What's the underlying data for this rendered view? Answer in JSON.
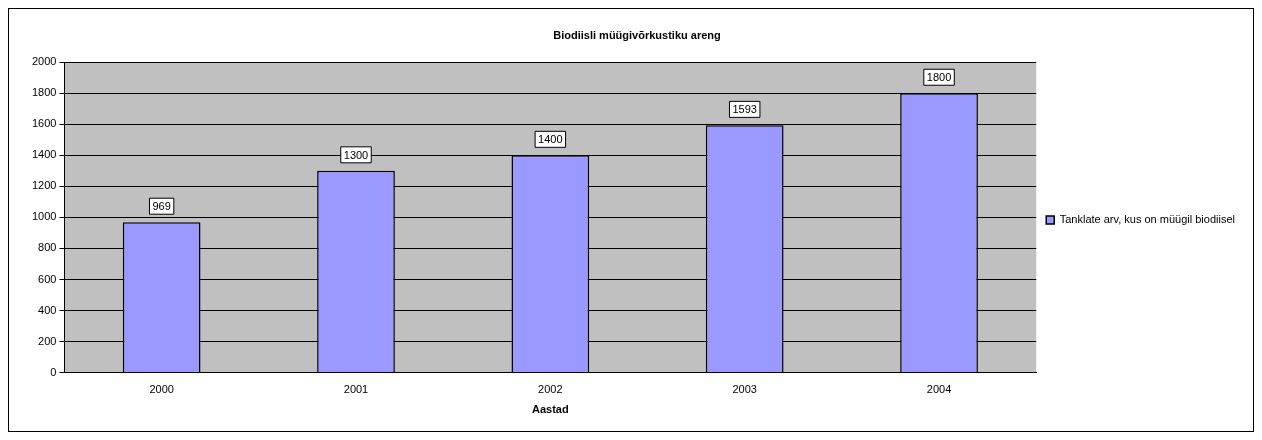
{
  "chart_data": {
    "type": "bar",
    "title": "Biodiisli müügivõrkustiku areng",
    "xlabel": "Aastad",
    "categories": [
      "2000",
      "2001",
      "2002",
      "2003",
      "2004"
    ],
    "series": [
      {
        "name": "Tanklate arv, kus on müügil biodiisel",
        "color": "#9999ff",
        "values": [
          969,
          1300,
          1400,
          1593,
          1800
        ]
      }
    ],
    "ylim": [
      0,
      2000
    ],
    "yticks": [
      0,
      200,
      400,
      600,
      800,
      1000,
      1200,
      1400,
      1600,
      1800,
      2000
    ],
    "grid": "y",
    "legend": "right",
    "data_labels": true
  }
}
